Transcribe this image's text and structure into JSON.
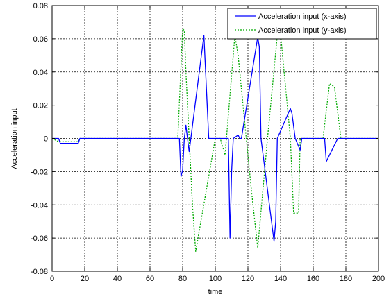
{
  "chart_data": {
    "type": "line",
    "title": "",
    "xlabel": "time",
    "ylabel": "Acceleration input",
    "xlim": [
      0,
      200
    ],
    "ylim": [
      -0.08,
      0.08
    ],
    "xticks": [
      0,
      20,
      40,
      60,
      80,
      100,
      120,
      140,
      160,
      180,
      200
    ],
    "yticks": [
      -0.08,
      -0.06,
      -0.04,
      -0.02,
      0,
      0.02,
      0.04,
      0.06,
      0.08
    ],
    "xtick_labels": [
      "0",
      "20",
      "40",
      "60",
      "80",
      "100",
      "120",
      "140",
      "160",
      "180",
      "200"
    ],
    "ytick_labels": [
      "-0.08",
      "-0.06",
      "-0.04",
      "-0.02",
      "0",
      "0.02",
      "0.04",
      "0.06",
      "0.08"
    ],
    "grid": true,
    "legend_position": "top-right",
    "series": [
      {
        "name": "Acceleration input (x-axis)",
        "color": "#0000ff",
        "style": "solid",
        "x": [
          0,
          4,
          5,
          16,
          17,
          78,
          79,
          80,
          81,
          82,
          83,
          84,
          85,
          93,
          96,
          97,
          108,
          109,
          110,
          111,
          114,
          115,
          116,
          126,
          127,
          128,
          136,
          137,
          138,
          146,
          147,
          149,
          152,
          153,
          167,
          168,
          169,
          175,
          176,
          200
        ],
        "y": [
          0,
          0,
          -0.003,
          -0.003,
          0,
          0,
          -0.023,
          -0.019,
          0,
          0.008,
          0,
          -0.008,
          0,
          0.062,
          0,
          0,
          0,
          -0.06,
          -0.02,
          0,
          0.002,
          0,
          0,
          0.061,
          0.055,
          0,
          -0.062,
          -0.05,
          0,
          0.018,
          0.015,
          0,
          -0.007,
          0,
          0,
          -0.014,
          -0.012,
          0,
          0,
          0
        ],
        "draw_from": "#x"
      },
      {
        "name": "Acceleration input (y-axis)",
        "color": "#00aa00",
        "style": "dotted",
        "x": [
          0,
          4,
          16,
          17,
          77,
          80,
          81,
          82,
          84,
          86,
          88,
          100,
          101,
          102,
          103,
          106,
          112,
          114,
          119,
          122,
          126,
          132,
          138,
          140,
          146,
          148,
          151,
          152,
          166,
          170,
          173,
          177,
          178,
          200
        ],
        "y": [
          0,
          -0.002,
          -0.002,
          0,
          0,
          0.066,
          0.065,
          0.04,
          0,
          -0.04,
          -0.068,
          0,
          0,
          0,
          0,
          -0.01,
          0.062,
          0.05,
          0,
          -0.03,
          -0.066,
          0,
          0.062,
          0.063,
          0,
          -0.045,
          -0.045,
          0,
          0,
          0.033,
          0.031,
          0,
          0,
          0
        ]
      }
    ]
  }
}
